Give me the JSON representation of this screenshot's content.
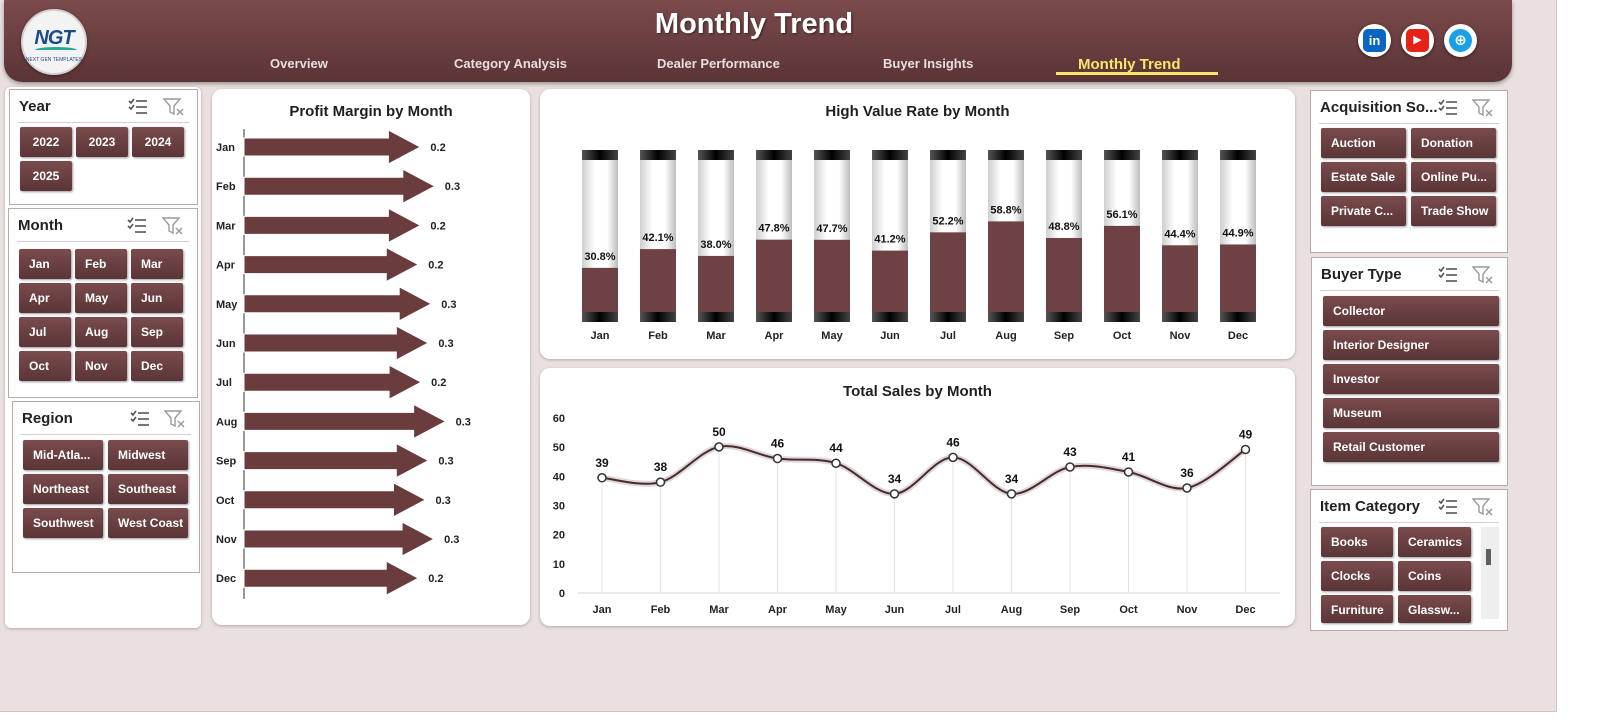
{
  "header": {
    "title": "Monthly Trend",
    "logo": {
      "text": "NGT",
      "subtext": "NEXT GEN TEMPLATES"
    },
    "tabs": [
      {
        "label": "Overview"
      },
      {
        "label": "Category Analysis"
      },
      {
        "label": "Dealer Performance"
      },
      {
        "label": "Buyer Insights"
      },
      {
        "label": "Monthly Trend",
        "active": true
      }
    ],
    "social": [
      {
        "name": "linkedin",
        "glyph": "in",
        "color": "#0a66c2"
      },
      {
        "name": "youtube",
        "glyph": "▶",
        "color": "#e62117"
      },
      {
        "name": "website",
        "glyph": "⊕",
        "color": "#1aa0e6"
      }
    ]
  },
  "slicers": {
    "year": {
      "title": "Year",
      "items": [
        "2022",
        "2023",
        "2024",
        "2025"
      ]
    },
    "month": {
      "title": "Month",
      "items": [
        "Jan",
        "Feb",
        "Mar",
        "Apr",
        "May",
        "Jun",
        "Jul",
        "Aug",
        "Sep",
        "Oct",
        "Nov",
        "Dec"
      ]
    },
    "region": {
      "title": "Region",
      "items": [
        "Mid-Atla...",
        "Midwest",
        "Northeast",
        "Southeast",
        "Southwest",
        "West Coast"
      ]
    },
    "acquisition_source": {
      "title": "Acquisition So...",
      "items": [
        "Auction",
        "Donation",
        "Estate Sale",
        "Online Pu...",
        "Private C...",
        "Trade Show"
      ]
    },
    "buyer_type": {
      "title": "Buyer Type",
      "items": [
        "Collector",
        "Interior Designer",
        "Investor",
        "Museum",
        "Retail Customer"
      ]
    },
    "item_category": {
      "title": "Item Category",
      "items": [
        "Books",
        "Ceramics",
        "Clocks",
        "Coins",
        "Furniture",
        "Glassw..."
      ]
    }
  },
  "chart_data": [
    {
      "type": "bar",
      "orientation": "horizontal",
      "title": "Profit Margin by Month",
      "categories": [
        "Jan",
        "Feb",
        "Mar",
        "Apr",
        "May",
        "Jun",
        "Jul",
        "Aug",
        "Sep",
        "Oct",
        "Nov",
        "Dec"
      ],
      "values": [
        0.2,
        0.3,
        0.2,
        0.2,
        0.3,
        0.3,
        0.2,
        0.3,
        0.3,
        0.3,
        0.3,
        0.2
      ],
      "bar_lengths": [
        0.245,
        0.265,
        0.245,
        0.242,
        0.26,
        0.256,
        0.246,
        0.28,
        0.256,
        0.252,
        0.264,
        0.242
      ],
      "labels": [
        "0.2",
        "0.3",
        "0.2",
        "0.2",
        "0.3",
        "0.3",
        "0.2",
        "0.3",
        "0.3",
        "0.3",
        "0.3",
        "0.2"
      ]
    },
    {
      "type": "bar",
      "title": "High Value Rate by Month",
      "categories": [
        "Jan",
        "Feb",
        "Mar",
        "Apr",
        "May",
        "Jun",
        "Jul",
        "Aug",
        "Sep",
        "Oct",
        "Nov",
        "Dec"
      ],
      "values": [
        30.8,
        42.1,
        38.0,
        47.8,
        47.7,
        41.2,
        52.2,
        58.8,
        48.8,
        56.1,
        44.4,
        44.9
      ],
      "labels": [
        "30.8%",
        "42.1%",
        "38.0%",
        "47.8%",
        "47.7%",
        "41.2%",
        "52.2%",
        "58.8%",
        "48.8%",
        "56.1%",
        "44.4%",
        "44.9%"
      ],
      "ylim": [
        0,
        100
      ]
    },
    {
      "type": "line",
      "title": "Total Sales by Month",
      "categories": [
        "Jan",
        "Feb",
        "Mar",
        "Apr",
        "May",
        "Jun",
        "Jul",
        "Aug",
        "Sep",
        "Oct",
        "Nov",
        "Dec"
      ],
      "values": [
        39,
        38,
        50,
        46,
        44,
        34,
        46,
        34,
        43,
        41,
        36,
        49
      ],
      "plotted": [
        39.5,
        38,
        50.1,
        46.1,
        44.5,
        34,
        46.5,
        34,
        43.2,
        41.5,
        36,
        49.2
      ],
      "yticks": [
        "0",
        "10",
        "20",
        "30",
        "40",
        "50",
        "60"
      ],
      "ylim": [
        0,
        60
      ]
    }
  ],
  "colors": {
    "accent": "#6e4244",
    "header": "#5b3436",
    "active_tab": "#f5e86a",
    "canvas": "#ebe0e0"
  }
}
